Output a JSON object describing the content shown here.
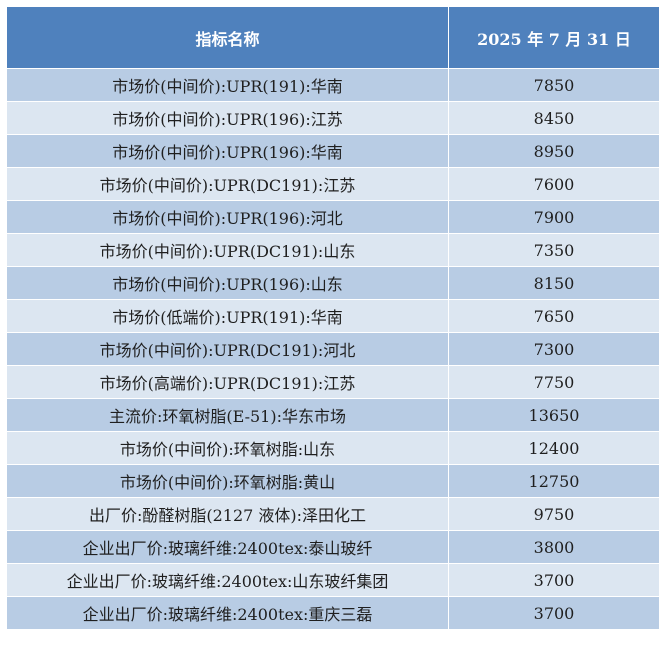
{
  "table": {
    "headers": [
      "指标名称",
      "2025 年 7 月 31 日"
    ],
    "rows": [
      {
        "name": "市场价(中间价):UPR(191):华南",
        "value": "7850"
      },
      {
        "name": "市场价(中间价):UPR(196):江苏",
        "value": "8450"
      },
      {
        "name": "市场价(中间价):UPR(196):华南",
        "value": "8950"
      },
      {
        "name": "市场价(中间价):UPR(DC191):江苏",
        "value": "7600"
      },
      {
        "name": "市场价(中间价):UPR(196):河北",
        "value": "7900"
      },
      {
        "name": "市场价(中间价):UPR(DC191):山东",
        "value": "7350"
      },
      {
        "name": "市场价(中间价):UPR(196):山东",
        "value": "8150"
      },
      {
        "name": "市场价(低端价):UPR(191):华南",
        "value": "7650"
      },
      {
        "name": "市场价(中间价):UPR(DC191):河北",
        "value": "7300"
      },
      {
        "name": "市场价(高端价):UPR(DC191):江苏",
        "value": "7750"
      },
      {
        "name": "主流价:环氧树脂(E-51):华东市场",
        "value": "13650"
      },
      {
        "name": "市场价(中间价):环氧树脂:山东",
        "value": "12400"
      },
      {
        "name": "市场价(中间价):环氧树脂:黄山",
        "value": "12750"
      },
      {
        "name": "出厂价:酚醛树脂(2127 液体):泽田化工",
        "value": "9750"
      },
      {
        "name": "企业出厂价:玻璃纤维:2400tex:泰山玻纤",
        "value": "3800"
      },
      {
        "name": "企业出厂价:玻璃纤维:2400tex:山东玻纤集团",
        "value": "3700"
      },
      {
        "name": "企业出厂价:玻璃纤维:2400tex:重庆三磊",
        "value": "3700"
      }
    ]
  },
  "colors": {
    "header_bg": "#4f81bd",
    "row_dark": "#b8cce4",
    "row_light": "#dce6f1"
  }
}
